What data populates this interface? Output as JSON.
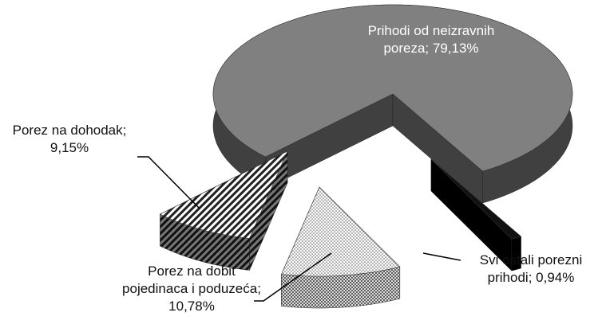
{
  "chart_data": {
    "type": "pie",
    "value_labels": [
      "Prihodi od neizravnih poreza; 79,13%",
      "Svi ostali porezni prihodi; 0,94%",
      "Porez na dobit pojedinaca i poduzeća; 10,78%",
      "Porez na dohodak; 9,15%"
    ],
    "values": [
      79.13,
      0.94,
      10.78,
      9.15
    ],
    "colors": [
      "#808080",
      "#111111",
      "#ffffff",
      "#ffffff"
    ]
  }
}
